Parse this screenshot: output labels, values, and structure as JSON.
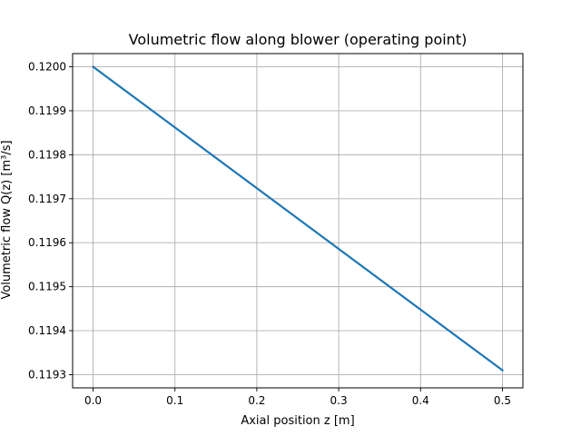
{
  "chart_data": {
    "type": "line",
    "title": "Volumetric flow along blower (operating point)",
    "xlabel": "Axial position z [m]",
    "ylabel": "Volumetric flow Q(z) [m³/s]",
    "xlim": [
      -0.025,
      0.525
    ],
    "ylim": [
      0.11927,
      0.12003
    ],
    "xticks": [
      0.0,
      0.1,
      0.2,
      0.3,
      0.4,
      0.5
    ],
    "xtick_labels": [
      "0.0",
      "0.1",
      "0.2",
      "0.3",
      "0.4",
      "0.5"
    ],
    "yticks": [
      0.1193,
      0.1194,
      0.1195,
      0.1196,
      0.1197,
      0.1198,
      0.1199,
      0.12
    ],
    "ytick_labels": [
      "0.1193",
      "0.1194",
      "0.1195",
      "0.1196",
      "0.1197",
      "0.1198",
      "0.1199",
      "0.1200"
    ],
    "grid": true,
    "series": [
      {
        "color": "#1f77b4",
        "x": [
          0.0,
          0.5
        ],
        "y": [
          0.12,
          0.11931
        ]
      }
    ]
  }
}
